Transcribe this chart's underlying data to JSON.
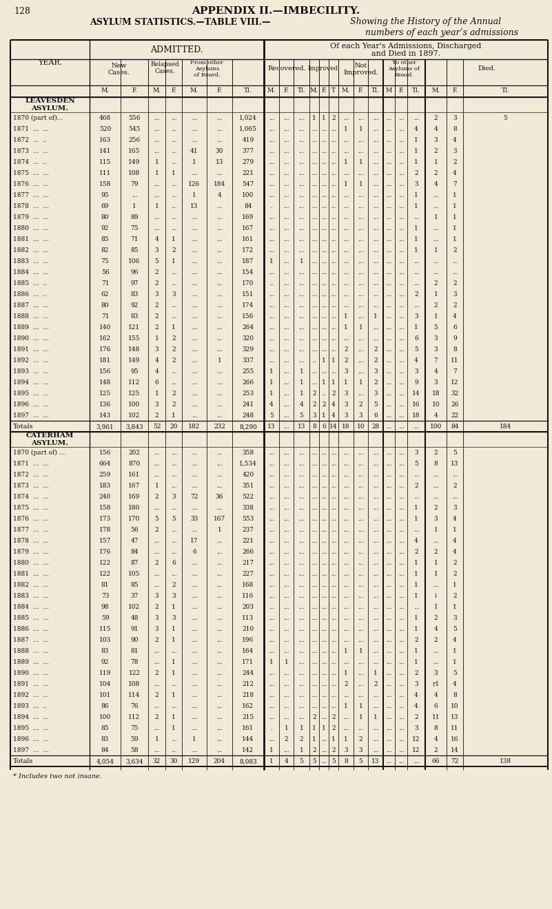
{
  "page_num": "128",
  "title1": "APPENDIX II.—IMBECILITY.",
  "title2a": "ASYLUM STATISTICS.—TABLE VIII.—",
  "title2b": "Showing the History of the Annual",
  "title3": "numbers of each year’s admissions",
  "bg_color": "#f2ead8",
  "text_color": "#111111",
  "line_color": "#111111",
  "section1_name": "LEAVESDEN\nASYLUM.",
  "section2_name": "CATERHAM\nASYLUM.",
  "footnote": "* Includes two not insane.",
  "leavesden_rows": [
    [
      "1870 (part of)...",
      "468",
      "556",
      "...",
      "...",
      "...",
      "...",
      "1,024",
      "...",
      "...",
      "...",
      "1",
      "1",
      "2",
      "...",
      "...",
      "...",
      "...",
      "...",
      "...",
      "2",
      "3",
      "5"
    ],
    [
      "1871  ...  ...",
      "520",
      "545",
      "...",
      "...",
      "...",
      "...",
      "1,065",
      "...",
      "...",
      "...",
      "...",
      "...",
      "...",
      "1",
      "1",
      "...",
      "...",
      "...",
      "4",
      "4",
      "8"
    ],
    [
      "1872  ...  ..",
      "163",
      "256",
      "...",
      "...",
      "...",
      "...",
      "419",
      "...",
      "...",
      "...",
      "...",
      "...",
      "...",
      "...",
      "...",
      "...",
      "...",
      "...",
      "1",
      "3",
      "4"
    ],
    [
      "1873  ...  ...",
      "141",
      "165",
      "...",
      "...",
      "41",
      "30",
      "377",
      "...",
      "...",
      "...",
      "...",
      "...",
      "...",
      "...",
      "...",
      "...",
      "...",
      "...",
      "1",
      "2",
      "3"
    ],
    [
      "1874  ...  ..",
      "115",
      "149",
      "1",
      "...",
      "1",
      "13",
      "279",
      "...",
      "...",
      "...",
      "...",
      "...",
      "...",
      "1",
      "1",
      "...",
      "...",
      "...",
      "1",
      "1",
      "2"
    ],
    [
      "1875  ...  ...",
      "111",
      "108",
      "1",
      "1",
      "...",
      "...",
      "221",
      "...",
      "...",
      "...",
      "...",
      "...",
      "...",
      "...",
      "...",
      "...",
      "...",
      "...",
      "2",
      "2",
      "4"
    ],
    [
      "1876  ...  ...",
      "158",
      "79",
      "...",
      "...",
      "126",
      "184",
      "547",
      "...",
      "...",
      "...",
      "...",
      "...",
      "...",
      "1",
      "1",
      "...",
      "...",
      "...",
      "3",
      "4",
      "7"
    ],
    [
      "1877  ...  ...",
      "95",
      "...",
      "...",
      "...",
      "1",
      "4",
      "100",
      "...",
      "...",
      "...",
      "...",
      "...",
      "...",
      "...",
      "...",
      "...",
      "...",
      "...",
      "1",
      "...",
      "1"
    ],
    [
      "1878  ...  ...",
      "69",
      "1",
      "1",
      "...",
      "13",
      "...",
      "84",
      ".",
      "...",
      "...",
      "...",
      "...",
      "...",
      "...",
      "...",
      "...",
      "...",
      "...",
      "1",
      "...",
      "1"
    ],
    [
      "1879  ...  ...",
      "80",
      "89",
      "...",
      "...",
      "...",
      "...",
      "169",
      "...",
      "...",
      "...",
      "...",
      "...",
      "...",
      "...",
      "...",
      "...",
      "...",
      "...",
      "...",
      "1",
      "1"
    ],
    [
      "1880  ...  ...",
      "92",
      "75",
      "...",
      "...",
      "...",
      "...",
      "167",
      "...",
      "...",
      "...",
      "...",
      "...",
      "...",
      "...",
      "...",
      "...",
      "...",
      "...",
      "1",
      "...",
      "1"
    ],
    [
      "1881  ...  ...",
      "85",
      "71",
      "4",
      "1",
      "...",
      "...",
      "161",
      "...",
      "...",
      "...",
      "...",
      "...",
      "...",
      "...",
      "...",
      "...",
      "...",
      "...",
      "1",
      "...",
      "1"
    ],
    [
      "1882  ...  ...",
      "82",
      "85",
      "3",
      "2",
      "...",
      "...",
      "172",
      "...",
      "...",
      "...",
      "...",
      "...",
      "...",
      "...",
      "...",
      "...",
      "...",
      "...",
      "1",
      "1",
      "2"
    ],
    [
      "1883  ...  ...",
      "75",
      "106",
      "5",
      "1",
      "...",
      "...",
      "187",
      "1",
      "...",
      "1",
      "...",
      "...",
      "...",
      "...",
      "...",
      "...",
      "...",
      "...",
      "...",
      "...",
      "..."
    ],
    [
      "1884  ...  ...",
      "56",
      "96",
      "2",
      "...",
      "...",
      "...",
      "154",
      "...",
      "...",
      "...",
      "...",
      "...",
      "...",
      "...",
      "...",
      "...",
      "...",
      "...",
      "...",
      "...",
      "..."
    ],
    [
      "1885  ...  ..",
      "71",
      "97",
      "2",
      "...",
      "...",
      "...",
      "170",
      "..",
      "...",
      "...",
      "...",
      "...",
      "...",
      "...",
      "...",
      "...",
      "...",
      "...",
      "...",
      "2",
      "2"
    ],
    [
      "1886  ...  ..",
      "62",
      "83",
      "3",
      "3",
      "...",
      "...",
      "151",
      "...",
      "...",
      "...",
      "...",
      "...",
      "...",
      "...",
      "...",
      "...",
      "...",
      "...",
      "2",
      "1",
      "3"
    ],
    [
      "1887  ...  ...",
      "80",
      "92",
      "2",
      "...",
      "...",
      "...",
      "174",
      "...",
      "...",
      "...",
      "...",
      "...",
      "...",
      "...",
      "...",
      "...",
      "...",
      "...",
      "...",
      "2",
      "2"
    ],
    [
      "1888  ...  ...",
      "71",
      "83",
      "2",
      "...",
      "...",
      "...",
      "156",
      "...",
      "...",
      "...",
      "...",
      "...",
      "...",
      "1",
      "...",
      "1",
      "...",
      "...",
      "3",
      "1",
      "4"
    ],
    [
      "1889  ...  ...",
      "140",
      "121",
      "2",
      "1",
      "...",
      "...",
      "264",
      "...",
      "...",
      "...",
      "...",
      "...",
      "...",
      "1",
      "1",
      "...",
      "...",
      "...",
      "1",
      "5",
      "6"
    ],
    [
      "1890  ...  ...",
      "162",
      "155",
      "1",
      "2",
      "...",
      "...",
      "320",
      "...",
      "...",
      "...",
      "...",
      "...",
      "...",
      "...",
      "...",
      "...",
      "...",
      "...",
      "6",
      "3",
      "9"
    ],
    [
      "1891  ...  ...",
      "176",
      "148",
      "3",
      "2",
      "...",
      "...",
      "329",
      "...",
      "...",
      "...",
      "...",
      "...",
      "...",
      "2",
      "...",
      "2",
      "...",
      "...",
      "5",
      "3",
      "8"
    ],
    [
      "1892  ...  ...",
      "181",
      "149",
      "4",
      "2",
      "...",
      "1",
      "337",
      "...",
      "...",
      "...",
      "..",
      "1",
      "1",
      "2",
      "...",
      "2",
      "...",
      "...",
      "4",
      "7",
      "11"
    ],
    [
      "1893  ...  ...",
      "156",
      "95",
      "4",
      "...",
      "...",
      "...",
      "255",
      "1",
      "...",
      "1",
      "...",
      "...",
      "...",
      "3",
      "...",
      "3",
      "...",
      "...",
      "3",
      "4",
      "7"
    ],
    [
      "1894  ...  ...",
      "148",
      "112",
      "6",
      "...",
      "...",
      "...",
      "266",
      "1",
      "...",
      "1",
      "...",
      "1",
      "1",
      "1",
      "1",
      "2",
      "...",
      "...",
      "9",
      "3",
      "12"
    ],
    [
      "1895  ...  ...",
      "125",
      "125",
      "1",
      "2",
      "...",
      "...",
      "253",
      "1",
      "...",
      "1",
      "2",
      "..",
      "2",
      "3",
      "...",
      "3",
      "...",
      "...",
      "14",
      "18",
      "32"
    ],
    [
      "1896  ...  ...",
      "136",
      "100",
      "3",
      "2",
      "...",
      "...",
      "241",
      "4",
      "...",
      "4",
      "2",
      "2",
      "4",
      "3",
      "2",
      "5",
      "...",
      "...",
      "16",
      "10",
      "26"
    ],
    [
      "1897  ...  ...",
      "143",
      "102",
      "2",
      "1",
      "...",
      "...",
      "248",
      "5",
      "...",
      "5",
      "3",
      "1",
      "4",
      "3",
      "3",
      "6",
      "...",
      "...",
      "18",
      "4",
      "22"
    ]
  ],
  "leavesden_totals": [
    "Totals",
    "3,961",
    "3,843",
    "52",
    "20",
    "182",
    "232",
    "8,290",
    "13",
    "...",
    "13",
    "8",
    "6",
    "14",
    "18",
    "10",
    "28",
    "...",
    "...",
    "...",
    "100",
    "84",
    "184"
  ],
  "caterham_rows": [
    [
      "1870 (part of) ...",
      "156",
      "202",
      "...",
      "...",
      "...",
      "...",
      "358",
      "...",
      "...",
      "...",
      "...",
      "...",
      "...",
      "...",
      "...",
      "...",
      "...",
      "...",
      "3",
      "2",
      "5"
    ],
    [
      "1871  ...  ...",
      "664",
      "870",
      "...",
      "...",
      "...",
      "...",
      "1,534",
      "...",
      "...",
      "...",
      "...",
      "...",
      "...",
      "...",
      "...",
      "...",
      "...",
      "...",
      "5",
      "8",
      "13"
    ],
    [
      "1872  ...  ...",
      "259",
      "161",
      "...",
      "...",
      "...",
      "...",
      "420",
      "...",
      "...",
      "...",
      "...",
      "...",
      "...",
      "...",
      "...",
      "...",
      "...",
      "...",
      "...",
      "...",
      "..."
    ],
    [
      "1873  ...  ...",
      "183",
      "167",
      "1",
      "...",
      "...",
      "...",
      "351",
      "...",
      "...",
      "...",
      "...",
      "...",
      "...",
      "...",
      "...",
      "...",
      "...",
      "...",
      "2",
      "...",
      "2"
    ],
    [
      "1874  ...  ...",
      "240",
      "169",
      "2",
      "3",
      "72",
      "36",
      "522",
      "...",
      "...",
      "...",
      "...",
      "...",
      "...",
      "...",
      "...",
      "...",
      "...",
      "...",
      "...",
      "...",
      "..."
    ],
    [
      "1875  ...  ...",
      "158",
      "180",
      "...",
      "...",
      "...",
      "...",
      "338",
      "...",
      "...",
      "...",
      "...",
      "...",
      "...",
      "...",
      "...",
      "...",
      "...",
      "...",
      "1",
      "2",
      "3"
    ],
    [
      "1876  ...  ...",
      "173",
      "170",
      "5",
      "5",
      "33",
      "167",
      "553",
      "...",
      "...",
      "...",
      "...",
      "...",
      "...",
      "...",
      "...",
      "...",
      "...",
      "...",
      "1",
      "3",
      "4"
    ],
    [
      "1877  ...  ...",
      "178",
      "56",
      "2",
      "...",
      "...",
      "1",
      "237",
      "...",
      "...",
      "...",
      "...",
      "...",
      "...",
      "...",
      "...",
      "...",
      "...",
      "...",
      "...",
      "1",
      "1"
    ],
    [
      "1878  ...  ...",
      "157",
      "47",
      "...",
      "...",
      "17",
      "...",
      "221",
      "...",
      "...",
      "...",
      "...",
      "...",
      "...",
      "...",
      "...",
      "...",
      "...",
      "...",
      "4",
      "...",
      "4"
    ],
    [
      "1879  ...  ...",
      "176",
      "84",
      "...",
      "...",
      "6",
      "...",
      "266",
      "...",
      "...",
      "...",
      "...",
      "...",
      "...",
      "...",
      "...",
      "...",
      "...",
      "...",
      "2",
      "2",
      "4"
    ],
    [
      "1880  ...  ...",
      "122",
      "87",
      "2",
      "6",
      "...",
      "...",
      "217",
      "...",
      "...",
      "...",
      "...",
      "...",
      "...",
      "...",
      "...",
      "...",
      "...",
      "...",
      "1",
      "1",
      "2"
    ],
    [
      "1881  ...  ...",
      "122",
      "105",
      "...",
      "...",
      "...",
      "...",
      "227",
      "...",
      "...",
      "...",
      "...",
      "...",
      "...",
      "...",
      "...",
      "...",
      "...",
      "...",
      "1",
      "1",
      "2"
    ],
    [
      "1882  ...  ...",
      "81",
      "85",
      "...",
      "2",
      "...",
      "...",
      "168",
      "...",
      "...",
      "...",
      "...",
      "...",
      "...",
      "...",
      "...",
      "...",
      "...",
      "...",
      "1",
      "...",
      "1"
    ],
    [
      "1883  ...  ...",
      "73",
      "37",
      "3",
      "3",
      "...",
      "...",
      "116",
      "...",
      "...",
      "...",
      "...",
      "...",
      "...",
      "...",
      "...",
      "...",
      "...",
      "...",
      "1",
      "i",
      "2"
    ],
    [
      "1884  ...  ...",
      "98",
      "102",
      "2",
      "1",
      "...",
      "...",
      "203",
      "...",
      "...",
      "...",
      "...",
      "...",
      "...",
      "...",
      "...",
      "...",
      "...",
      "...",
      "...",
      "1",
      "1"
    ],
    [
      "1885  ...  ...",
      "59",
      "48",
      "3",
      "3",
      "...",
      "...",
      "113",
      "...",
      "...",
      "...",
      "...",
      "...",
      "...",
      "...",
      "...",
      "...",
      "...",
      "...",
      "1",
      "2",
      "3"
    ],
    [
      "1886  ...  ...",
      "115",
      "91",
      "3",
      "1",
      "...",
      "...",
      "210",
      "...",
      "...",
      "...",
      "...",
      "...",
      "...",
      "...",
      "...",
      "...",
      "...",
      "...",
      "1",
      "4",
      "5"
    ],
    [
      "1887  ...  ...",
      "103",
      "90",
      "2",
      "1",
      "...",
      "...",
      "196",
      "...",
      "...",
      "...",
      "...",
      "...",
      "...",
      "...",
      "...",
      "...",
      "...",
      "...",
      "2",
      "2",
      "4"
    ],
    [
      "1888  ...  ...",
      "83",
      "81",
      "...",
      "...",
      "...",
      "...",
      "164",
      "...",
      "...",
      "...",
      "...",
      "...",
      "...",
      "1",
      "1",
      "...",
      "...",
      "...",
      "1",
      "...",
      "1"
    ],
    [
      "1889  ...  ...",
      "92",
      "78",
      "...",
      "1",
      "...",
      "...",
      "171",
      "1",
      "1",
      "...",
      "...",
      "...",
      "...",
      "...",
      "...",
      "...",
      "...",
      "...",
      "1",
      "...",
      "1"
    ],
    [
      "1890  ...  ...",
      "119",
      "122",
      "2",
      "1",
      "...",
      "...",
      "244",
      "...",
      "...",
      "...",
      "...",
      "...",
      "...",
      "1",
      "...",
      "1",
      "...",
      "...",
      "2",
      "3",
      "5"
    ],
    [
      "1891  ...  ...",
      "104",
      "108",
      "...",
      "...",
      "...",
      "...",
      "212",
      "...",
      "...",
      "...",
      "...",
      "...",
      "...",
      "2",
      "...",
      "2",
      "...",
      "...",
      "3",
      "r1",
      "4"
    ],
    [
      "1892  ...  ...",
      "101",
      "114",
      "2",
      "1",
      "...",
      "...",
      "218",
      "...",
      "...",
      "...",
      "...",
      "...",
      "...",
      "...",
      "...",
      "...",
      "...",
      "...",
      "4",
      "4",
      "8"
    ],
    [
      "1893  ...  ..",
      "86",
      "76",
      "...",
      "...",
      "...",
      "...",
      "162",
      "...",
      "...",
      "...",
      "...",
      "...",
      "...",
      "1",
      "1",
      "...",
      "...",
      "...",
      "4",
      "6",
      "10"
    ],
    [
      "1894  ...  ...",
      "100",
      "112",
      "2",
      "1",
      "...",
      "...",
      "215",
      "...",
      "...",
      "...",
      "2",
      "...",
      "2",
      "...",
      "1",
      "1",
      "...",
      "...",
      "2",
      "11",
      "13"
    ],
    [
      "1895  ...  ...",
      "85",
      "75",
      "...",
      "1",
      "...",
      "...",
      "161",
      ".",
      "1",
      "1",
      "1",
      "1",
      "2",
      "...",
      "...",
      "...",
      "...",
      "...",
      "3",
      "8",
      "11"
    ],
    [
      "1896  ...  ...",
      "83",
      "59",
      "1",
      "...",
      "1",
      "...",
      "144",
      "...",
      "2",
      "2",
      "1",
      "...",
      "1",
      "1",
      "2",
      "...",
      "...",
      "...",
      "12",
      "4",
      "16"
    ],
    [
      "1897  ...  ...",
      "84",
      "58",
      "...",
      "...",
      "...",
      "...",
      "142",
      "1",
      "...",
      "1",
      "2",
      "...",
      "2",
      "3",
      "3",
      "...",
      "...",
      "...",
      "12",
      "2",
      "14"
    ]
  ],
  "caterham_totals": [
    "Totals",
    "4,054",
    "3,634",
    "32",
    "30",
    "129",
    "204",
    "8,083",
    "1",
    "4",
    "5",
    "5",
    "...",
    "5",
    "8",
    "5",
    "13",
    "...",
    "...",
    "...",
    "66",
    "72",
    "138"
  ]
}
